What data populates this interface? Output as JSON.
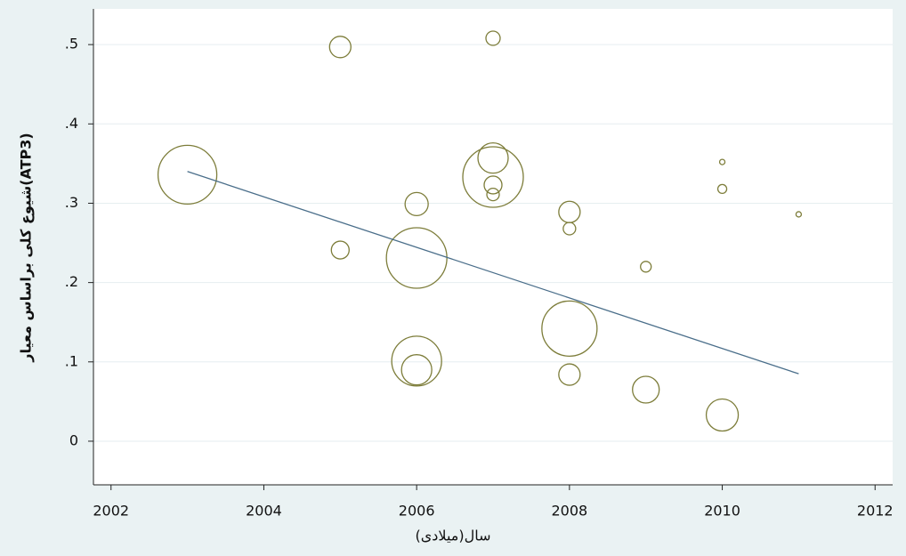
{
  "chart_data": {
    "type": "scatter",
    "y_label": "شیوع کلی براساس معیار(ATP3)",
    "x_label": "سال(میلادی)",
    "x": [
      2003,
      2005,
      2005,
      2006,
      2006,
      2006,
      2006,
      2007,
      2007,
      2007,
      2007,
      2007,
      2008,
      2008,
      2008,
      2008,
      2009,
      2009,
      2010,
      2010,
      2010,
      2011
    ],
    "values": [
      0.336,
      0.497,
      0.241,
      0.299,
      0.231,
      0.101,
      0.09,
      0.508,
      0.357,
      0.333,
      0.323,
      0.311,
      0.289,
      0.268,
      0.142,
      0.084,
      0.22,
      0.065,
      0.352,
      0.318,
      0.033,
      0.286
    ],
    "sizes": [
      1089,
      144,
      100,
      169,
      1156,
      784,
      289,
      64,
      289,
      1156,
      100,
      49,
      144,
      49,
      961,
      144,
      36,
      225,
      9,
      25,
      324,
      9
    ],
    "color": "#7d7d3a",
    "fit_line": {
      "x": [
        2003,
        2011
      ],
      "values": [
        0.34,
        0.085
      ],
      "color": "#4a6e8a"
    },
    "xlim": [
      2001.77,
      2012.23
    ],
    "ylim": [
      -0.055,
      0.545
    ],
    "xticks": [
      2002,
      2004,
      2006,
      2008,
      2010,
      2012
    ],
    "yticks": [
      0,
      {
        "value": 0.1,
        "label": ".1"
      },
      {
        "value": 0.2,
        "label": ".2"
      },
      {
        "value": 0.3,
        "label": ".3"
      },
      {
        "value": 0.4,
        "label": ".4"
      },
      {
        "value": 0.5,
        "label": ".5"
      }
    ],
    "grid": true
  }
}
